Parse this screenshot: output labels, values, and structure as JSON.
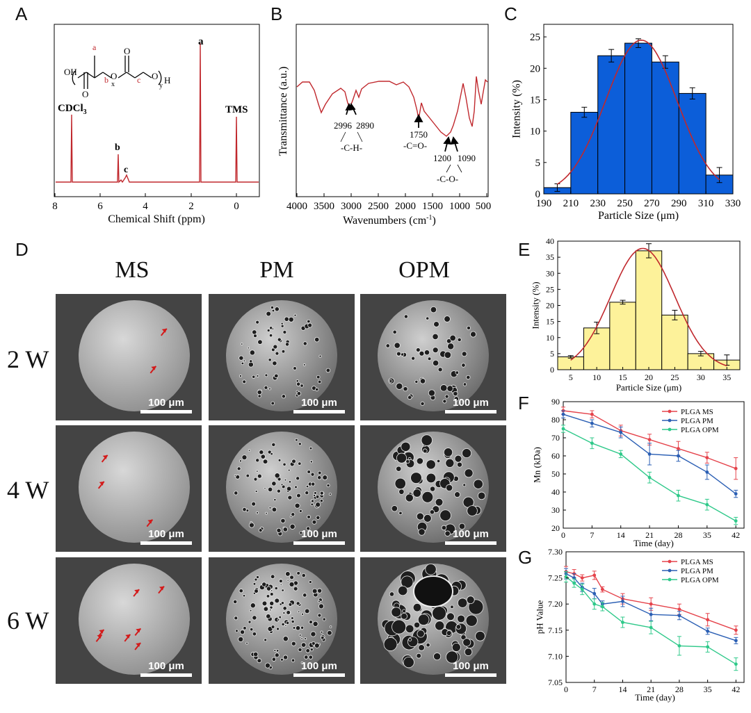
{
  "panel_labels": {
    "A": "A",
    "B": "B",
    "C": "C",
    "D": "D",
    "E": "E",
    "F": "F",
    "G": "G"
  },
  "colors": {
    "nmr_red": "#c0282d",
    "bar_blue": "#0c5ed9",
    "bar_yellow": "#fdf29a",
    "curve_red": "#c0282d",
    "ms": "#e5434b",
    "pm": "#2b5fb4",
    "opm": "#2fc98a",
    "arrow": "#d31a1a"
  },
  "panel_a": {
    "xlabel": "Chemical Shift (ppm)",
    "ticks": [
      "8",
      "6",
      "4",
      "2",
      "0"
    ],
    "peaks": {
      "cdcl3": "CDCl",
      "cdcl3_sub": "3",
      "tms": "TMS",
      "a": "a",
      "b": "b",
      "c": "c"
    },
    "structure": {
      "oh": "OH",
      "h": "H",
      "o": "O",
      "x": "x",
      "y": "y",
      "label_a": "a",
      "label_b": "b",
      "label_c": "c"
    }
  },
  "panel_b": {
    "ylabel": "Transmittance (a.u.)",
    "xlabel_main": "Wavenumbers (cm",
    "xlabel_sup": "-1",
    "xlabel_end": ")",
    "ticks": [
      "4000",
      "3500",
      "3000",
      "2500",
      "2000",
      "1500",
      "1000",
      "500"
    ],
    "annotations": {
      "w2996": "2996",
      "w2890": "2890",
      "ch": "-C-H-",
      "w1750": "1750",
      "co_double": "-C=O-",
      "w1200": "1200",
      "w1090": "1090",
      "co_single": "-C-O-"
    }
  },
  "chart_data": [
    {
      "id": "C",
      "type": "bar",
      "title": "",
      "xlabel": "Particle Size (μm)",
      "ylabel": "Intensity (%)",
      "x_edges": [
        190,
        210,
        230,
        250,
        270,
        290,
        310,
        330
      ],
      "xticks": [
        "190",
        "210",
        "230",
        "250",
        "270",
        "290",
        "310",
        "330"
      ],
      "categories": [
        "200",
        "220",
        "240",
        "260",
        "280",
        "300",
        "320"
      ],
      "values": [
        1,
        13,
        22,
        24,
        21,
        16,
        3
      ],
      "errors": [
        0.6,
        0.8,
        1.0,
        0.7,
        1.0,
        0.9,
        1.2
      ],
      "ylim": [
        0,
        27
      ],
      "yticks": [
        "0",
        "5",
        "10",
        "15",
        "20",
        "25"
      ],
      "fit": "gaussian"
    },
    {
      "id": "E",
      "type": "bar",
      "title": "",
      "xlabel": "Particle Size (μm)",
      "ylabel": "Intensity (%)",
      "x_edges": [
        2.5,
        7.5,
        12.5,
        17.5,
        22.5,
        27.5,
        32.5,
        37.5
      ],
      "xticks": [
        "5",
        "10",
        "15",
        "20",
        "25",
        "30",
        "35"
      ],
      "categories": [
        "5",
        "10",
        "15",
        "20",
        "25",
        "30",
        "35"
      ],
      "values": [
        4,
        13,
        21,
        37,
        17,
        5,
        3
      ],
      "errors": [
        0.4,
        1.8,
        0.6,
        2.2,
        1.5,
        0.7,
        1.6
      ],
      "ylim": [
        0,
        40
      ],
      "yticks": [
        "0",
        "5",
        "10",
        "15",
        "20",
        "25",
        "30",
        "35",
        "40"
      ],
      "fit": "gaussian"
    },
    {
      "id": "F",
      "type": "line",
      "title": "",
      "xlabel": "Time (day)",
      "ylabel": "Mn (kDa)",
      "x": [
        0,
        7,
        14,
        21,
        28,
        35,
        42
      ],
      "xticks": [
        "0",
        "7",
        "14",
        "21",
        "28",
        "35",
        "42"
      ],
      "ylim": [
        20,
        90
      ],
      "yticks": [
        "20",
        "30",
        "40",
        "50",
        "60",
        "70",
        "80",
        "90"
      ],
      "legend": "top-right",
      "series": [
        {
          "name": "PLGA MS",
          "values": [
            85,
            83,
            74,
            69,
            64,
            59,
            53
          ],
          "errors": [
            2,
            2,
            3,
            3,
            4,
            3,
            6
          ]
        },
        {
          "name": "PLGA PM",
          "values": [
            83,
            78,
            73,
            61,
            60,
            51,
            39
          ],
          "errors": [
            2,
            2,
            3,
            6,
            3,
            4,
            2
          ]
        },
        {
          "name": "PLGA OPM",
          "values": [
            75,
            67,
            61,
            48,
            38,
            33,
            24
          ],
          "errors": [
            2,
            3,
            2,
            3,
            3,
            3,
            2
          ]
        }
      ]
    },
    {
      "id": "G",
      "type": "line",
      "title": "",
      "xlabel": "Time (day)",
      "ylabel": "pH Value",
      "x": [
        0,
        2,
        4,
        7,
        9,
        14,
        21,
        28,
        35,
        42
      ],
      "xticks": [
        "0",
        "7",
        "14",
        "21",
        "28",
        "35",
        "42"
      ],
      "ylim": [
        7.05,
        7.3
      ],
      "yticks": [
        "7.05",
        "7.10",
        "7.15",
        "7.20",
        "7.25",
        "7.30"
      ],
      "legend": "top-right",
      "series": [
        {
          "name": "PLGA MS",
          "values": [
            7.262,
            7.258,
            7.25,
            7.255,
            7.228,
            7.21,
            7.2,
            7.19,
            7.17,
            7.15
          ],
          "errors": [
            0.01,
            0.008,
            0.006,
            0.008,
            0.005,
            0.01,
            0.012,
            0.01,
            0.012,
            0.008
          ]
        },
        {
          "name": "PLGA PM",
          "values": [
            7.258,
            7.25,
            7.232,
            7.22,
            7.2,
            7.205,
            7.18,
            7.178,
            7.148,
            7.13
          ],
          "errors": [
            0.01,
            0.008,
            0.008,
            0.01,
            0.006,
            0.01,
            0.012,
            0.008,
            0.006,
            0.006
          ]
        },
        {
          "name": "PLGA OPM",
          "values": [
            7.252,
            7.24,
            7.228,
            7.2,
            7.195,
            7.165,
            7.155,
            7.12,
            7.118,
            7.085
          ],
          "errors": [
            0.01,
            0.008,
            0.01,
            0.01,
            0.008,
            0.01,
            0.012,
            0.018,
            0.01,
            0.012
          ]
        }
      ]
    }
  ],
  "panel_d": {
    "columns": [
      "MS",
      "PM",
      "OPM"
    ],
    "rows": [
      "2 W",
      "4 W",
      "6 W"
    ],
    "scale": "100 μm"
  }
}
